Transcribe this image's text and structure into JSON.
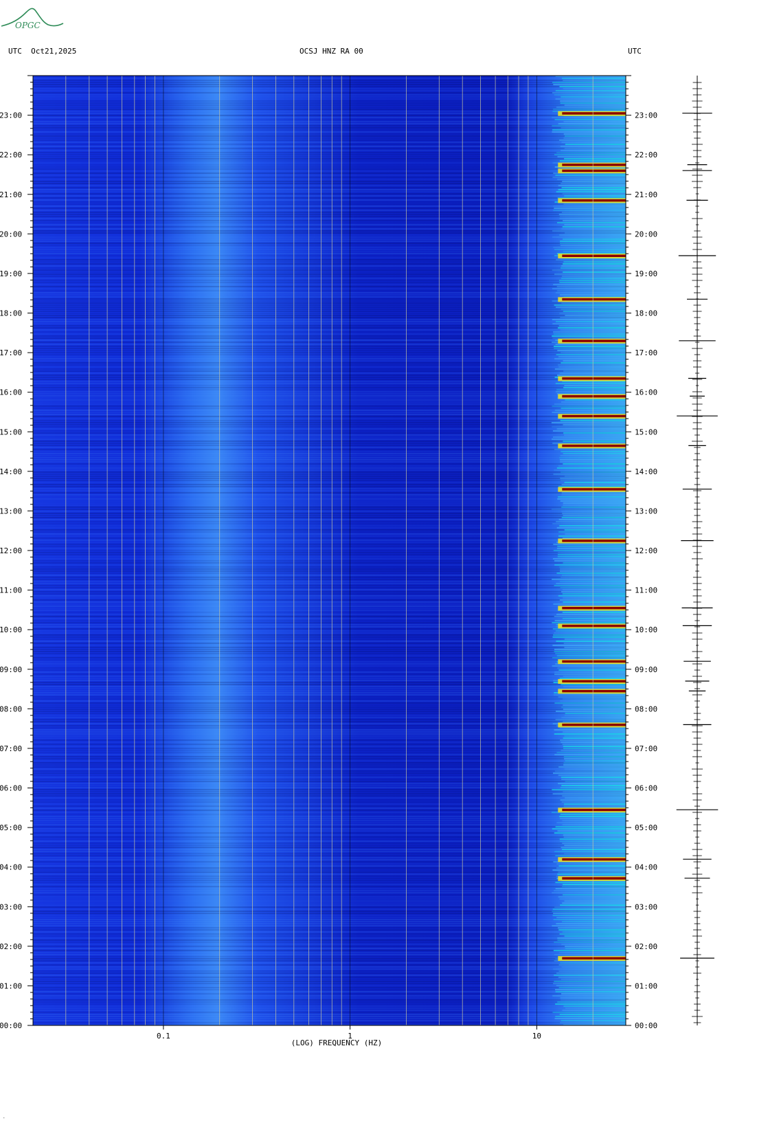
{
  "header": {
    "left": "UTC  Oct21,2025",
    "center": "OCSJ HNZ RA 00",
    "right": "UTC"
  },
  "logo": {
    "text": "OPGC",
    "color": "#2e8b57"
  },
  "colors": {
    "background_low": "#0a1fd6",
    "background_mid": "#1c4bef",
    "noise": "#3fa9f5",
    "high": "#19d8e6",
    "peak": "#f5e51a",
    "max": "#8b0000",
    "gridline": "#c8c8a0"
  },
  "chart_data": {
    "type": "heatmap",
    "xlabel": "(LOG) FREQUENCY (HZ)",
    "x_scale": "log",
    "xlim": [
      0.02,
      30
    ],
    "x_ticks": [
      {
        "value": 0.1,
        "label": "0.1"
      },
      {
        "value": 1,
        "label": "1"
      },
      {
        "value": 10,
        "label": "10"
      }
    ],
    "ylim": [
      0,
      24
    ],
    "y_ticks": [
      {
        "value": 23,
        "label": "23:00"
      },
      {
        "value": 22,
        "label": "22:00"
      },
      {
        "value": 21,
        "label": "21:00"
      },
      {
        "value": 20,
        "label": "20:00"
      },
      {
        "value": 19,
        "label": "19:00"
      },
      {
        "value": 18,
        "label": "18:00"
      },
      {
        "value": 17,
        "label": "17:00"
      },
      {
        "value": 16,
        "label": "16:00"
      },
      {
        "value": 15,
        "label": "15:00"
      },
      {
        "value": 14,
        "label": "14:00"
      },
      {
        "value": 13,
        "label": "13:00"
      },
      {
        "value": 12,
        "label": "12:00"
      },
      {
        "value": 11,
        "label": "11:00"
      },
      {
        "value": 10,
        "label": "10:00"
      },
      {
        "value": 9,
        "label": "09:00"
      },
      {
        "value": 8,
        "label": "08:00"
      },
      {
        "value": 7,
        "label": "07:00"
      },
      {
        "value": 6,
        "label": "06:00"
      },
      {
        "value": 5,
        "label": "05:00"
      },
      {
        "value": 4,
        "label": "04:00"
      },
      {
        "value": 3,
        "label": "03:00"
      },
      {
        "value": 2,
        "label": "02:00"
      },
      {
        "value": 1,
        "label": "01:00"
      },
      {
        "value": 0,
        "label": "00:00"
      }
    ],
    "grid": true,
    "events_utc_hours": [
      23.05,
      21.75,
      21.6,
      20.85,
      19.45,
      18.35,
      17.3,
      16.35,
      15.9,
      15.4,
      14.65,
      13.55,
      12.25,
      10.55,
      10.1,
      9.2,
      8.7,
      8.45,
      7.6,
      5.45,
      4.2,
      3.72,
      1.7
    ]
  },
  "footnote": "."
}
